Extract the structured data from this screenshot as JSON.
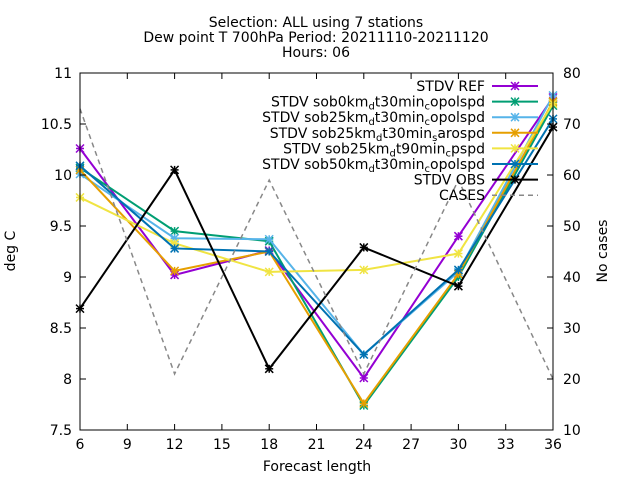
{
  "chart_data": {
    "type": "line",
    "title_lines": [
      "Selection: ALL using     7 stations",
      "Dew point T 700hPa   Period: 20211110-20211120",
      "Hours: 06"
    ],
    "xlabel": "Forecast length",
    "ylabel": "deg C",
    "y2label": "No cases",
    "x": [
      6,
      12,
      18,
      24,
      30,
      36
    ],
    "xlim": [
      6,
      36
    ],
    "xticks": [
      "6",
      "9",
      "12",
      "15",
      "18",
      "21",
      "24",
      "27",
      "30",
      "33",
      "36"
    ],
    "ylim": [
      7.5,
      11
    ],
    "yticks": [
      "7.5",
      "8",
      "8.5",
      "9",
      "9.5",
      "10",
      "10.5",
      "11"
    ],
    "y2lim": [
      10,
      80
    ],
    "y2ticks": [
      "10",
      "20",
      "30",
      "40",
      "50",
      "60",
      "70",
      "80"
    ],
    "grid": false,
    "legend_position": "top-right",
    "series": [
      {
        "name": "STDV REF",
        "name_parts": [
          [
            "STDV REF",
            "n"
          ]
        ],
        "color": "#9400d3",
        "marker": "x",
        "values": [
          10.26,
          9.02,
          9.26,
          8.01,
          9.4,
          10.76
        ]
      },
      {
        "name": "STDV sob0km_dt30min_copolspd",
        "name_parts": [
          [
            "STDV sob0km",
            "n"
          ],
          [
            "d",
            "sub"
          ],
          [
            "t30min",
            "n"
          ],
          [
            "c",
            "sub"
          ],
          [
            "opolspd",
            "n"
          ]
        ],
        "color": "#009e73",
        "marker": "x",
        "values": [
          10.07,
          9.45,
          9.35,
          7.74,
          9.0,
          10.68
        ]
      },
      {
        "name": "STDV sob25km_dt30min_copolspd",
        "name_parts": [
          [
            "STDV sob25km",
            "n"
          ],
          [
            "d",
            "sub"
          ],
          [
            "t30min",
            "n"
          ],
          [
            "c",
            "sub"
          ],
          [
            "opolspd",
            "n"
          ]
        ],
        "color": "#56b4e9",
        "marker": "x",
        "values": [
          10.01,
          9.38,
          9.37,
          8.24,
          9.05,
          10.78
        ]
      },
      {
        "name": "STDV sob25km_dt30min_sarospd",
        "name_parts": [
          [
            "STDV sob25km",
            "n"
          ],
          [
            "d",
            "sub"
          ],
          [
            "t30min",
            "n"
          ],
          [
            "s",
            "sub"
          ],
          [
            "arospd",
            "n"
          ]
        ],
        "color": "#e69f00",
        "marker": "x",
        "values": [
          10.05,
          9.06,
          9.25,
          7.76,
          9.03,
          10.72
        ]
      },
      {
        "name": "STDV sob25km_dt90min_cpspd",
        "name_parts": [
          [
            "STDV sob25km",
            "n"
          ],
          [
            "d",
            "sub"
          ],
          [
            "t90min",
            "n"
          ],
          [
            "c",
            "sub"
          ],
          [
            "pspd",
            "n"
          ]
        ],
        "color": "#f0e442",
        "marker": "x",
        "values": [
          9.78,
          9.33,
          9.05,
          9.07,
          9.23,
          10.7
        ]
      },
      {
        "name": "STDV sob50km_dt30min_copolspd",
        "name_parts": [
          [
            "STDV sob50km",
            "n"
          ],
          [
            "d",
            "sub"
          ],
          [
            "t30min",
            "n"
          ],
          [
            "c",
            "sub"
          ],
          [
            "opolspd",
            "n"
          ]
        ],
        "color": "#0072b2",
        "marker": "x",
        "values": [
          10.09,
          9.28,
          9.25,
          8.24,
          9.07,
          10.55
        ]
      },
      {
        "name": "STDV OBS",
        "name_parts": [
          [
            "STDV OBS",
            "n"
          ]
        ],
        "color": "#000000",
        "marker": "x",
        "values": [
          8.69,
          10.05,
          8.1,
          9.29,
          8.91,
          10.47
        ]
      },
      {
        "name": "CASES",
        "name_parts": [
          [
            "CASES",
            "n"
          ]
        ],
        "color": "#888888",
        "marker": "none",
        "dashed": true,
        "axis": "y2",
        "values": [
          73,
          21,
          59,
          21,
          59,
          20
        ]
      }
    ]
  }
}
